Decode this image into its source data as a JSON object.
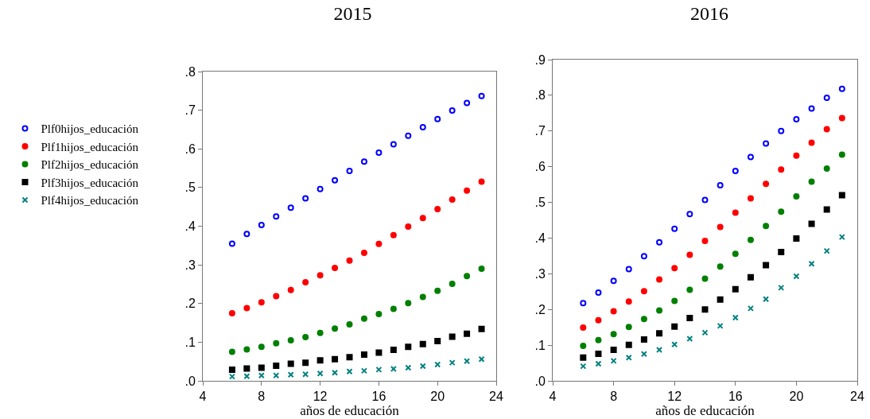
{
  "chart_data": [
    {
      "type": "scatter",
      "title": "2015",
      "xlabel": "años de educación",
      "x": [
        6,
        7,
        8,
        9,
        10,
        11,
        12,
        13,
        14,
        15,
        16,
        17,
        18,
        19,
        20,
        21,
        22,
        23
      ],
      "xlim": [
        4,
        24
      ],
      "xticks": [
        4,
        8,
        12,
        16,
        20,
        24
      ],
      "ylim": [
        0,
        0.8
      ],
      "yticks": [
        {
          "value": 0,
          "label": ".0"
        },
        {
          "value": 0.1,
          "label": ".1"
        },
        {
          "value": 0.2,
          "label": ".2"
        },
        {
          "value": 0.3,
          "label": ".3"
        },
        {
          "value": 0.4,
          "label": ".4"
        },
        {
          "value": 0.5,
          "label": ".5"
        },
        {
          "value": 0.6,
          "label": ".6"
        },
        {
          "value": 0.7,
          "label": ".7"
        },
        {
          "value": 0.8,
          "label": ".8"
        }
      ],
      "grid": false,
      "legend": "left",
      "series": [
        {
          "name": "Plf0hijos_educación",
          "color": "#0000ff",
          "marker": "circle-open",
          "values": [
            0.355,
            0.38,
            0.403,
            0.425,
            0.448,
            0.472,
            0.496,
            0.519,
            0.543,
            0.567,
            0.59,
            0.612,
            0.634,
            0.656,
            0.677,
            0.699,
            0.719,
            0.737
          ]
        },
        {
          "name": "Plf1hijos_educación",
          "color": "#ff0000",
          "marker": "circle",
          "values": [
            0.175,
            0.188,
            0.203,
            0.219,
            0.235,
            0.255,
            0.273,
            0.292,
            0.311,
            0.331,
            0.354,
            0.377,
            0.399,
            0.421,
            0.444,
            0.469,
            0.492,
            0.515
          ]
        },
        {
          "name": "Plf2hijos_educación",
          "color": "#008000",
          "marker": "circle",
          "values": [
            0.075,
            0.081,
            0.088,
            0.097,
            0.105,
            0.113,
            0.124,
            0.135,
            0.146,
            0.161,
            0.173,
            0.186,
            0.201,
            0.217,
            0.233,
            0.251,
            0.271,
            0.29
          ]
        },
        {
          "name": "Plf3hijos_educación",
          "color": "#000000",
          "marker": "square",
          "values": [
            0.029,
            0.032,
            0.034,
            0.039,
            0.044,
            0.047,
            0.053,
            0.056,
            0.061,
            0.068,
            0.073,
            0.08,
            0.088,
            0.095,
            0.103,
            0.114,
            0.122,
            0.134
          ]
        },
        {
          "name": "Plf4hijos_educación",
          "color": "#008080",
          "marker": "cross",
          "values": [
            0.011,
            0.012,
            0.014,
            0.014,
            0.016,
            0.017,
            0.019,
            0.021,
            0.024,
            0.026,
            0.029,
            0.031,
            0.034,
            0.038,
            0.042,
            0.047,
            0.051,
            0.056
          ]
        }
      ]
    },
    {
      "type": "scatter",
      "title": "2016",
      "xlabel": "años de educación",
      "x": [
        6,
        7,
        8,
        9,
        10,
        11,
        12,
        13,
        14,
        15,
        16,
        17,
        18,
        19,
        20,
        21,
        22,
        23
      ],
      "xlim": [
        4,
        24
      ],
      "xticks": [
        4,
        8,
        12,
        16,
        20,
        24
      ],
      "ylim": [
        0,
        0.9
      ],
      "yticks": [
        {
          "value": 0,
          "label": ".0"
        },
        {
          "value": 0.1,
          "label": ".1"
        },
        {
          "value": 0.2,
          "label": ".2"
        },
        {
          "value": 0.3,
          "label": ".3"
        },
        {
          "value": 0.4,
          "label": ".4"
        },
        {
          "value": 0.5,
          "label": ".5"
        },
        {
          "value": 0.6,
          "label": ".6"
        },
        {
          "value": 0.7,
          "label": ".7"
        },
        {
          "value": 0.8,
          "label": ".8"
        },
        {
          "value": 0.9,
          "label": ".9"
        }
      ],
      "grid": false,
      "series": [
        {
          "color": "#0000ff",
          "marker": "circle-open",
          "values": [
            0.218,
            0.247,
            0.28,
            0.313,
            0.349,
            0.388,
            0.426,
            0.467,
            0.507,
            0.548,
            0.588,
            0.627,
            0.665,
            0.7,
            0.733,
            0.763,
            0.793,
            0.818
          ]
        },
        {
          "color": "#ff0000",
          "marker": "circle",
          "values": [
            0.149,
            0.17,
            0.195,
            0.222,
            0.251,
            0.284,
            0.316,
            0.353,
            0.392,
            0.431,
            0.471,
            0.511,
            0.552,
            0.592,
            0.631,
            0.667,
            0.705,
            0.736
          ]
        },
        {
          "color": "#008000",
          "marker": "circle",
          "values": [
            0.098,
            0.114,
            0.131,
            0.151,
            0.173,
            0.197,
            0.224,
            0.255,
            0.286,
            0.32,
            0.356,
            0.395,
            0.434,
            0.474,
            0.517,
            0.558,
            0.595,
            0.634
          ]
        },
        {
          "color": "#000000",
          "marker": "square",
          "values": [
            0.065,
            0.076,
            0.087,
            0.101,
            0.116,
            0.133,
            0.152,
            0.176,
            0.2,
            0.228,
            0.257,
            0.29,
            0.324,
            0.361,
            0.399,
            0.44,
            0.48,
            0.52
          ]
        },
        {
          "color": "#008080",
          "marker": "cross",
          "values": [
            0.041,
            0.048,
            0.056,
            0.065,
            0.075,
            0.087,
            0.102,
            0.118,
            0.135,
            0.154,
            0.177,
            0.203,
            0.229,
            0.261,
            0.293,
            0.328,
            0.364,
            0.403
          ]
        }
      ]
    }
  ]
}
